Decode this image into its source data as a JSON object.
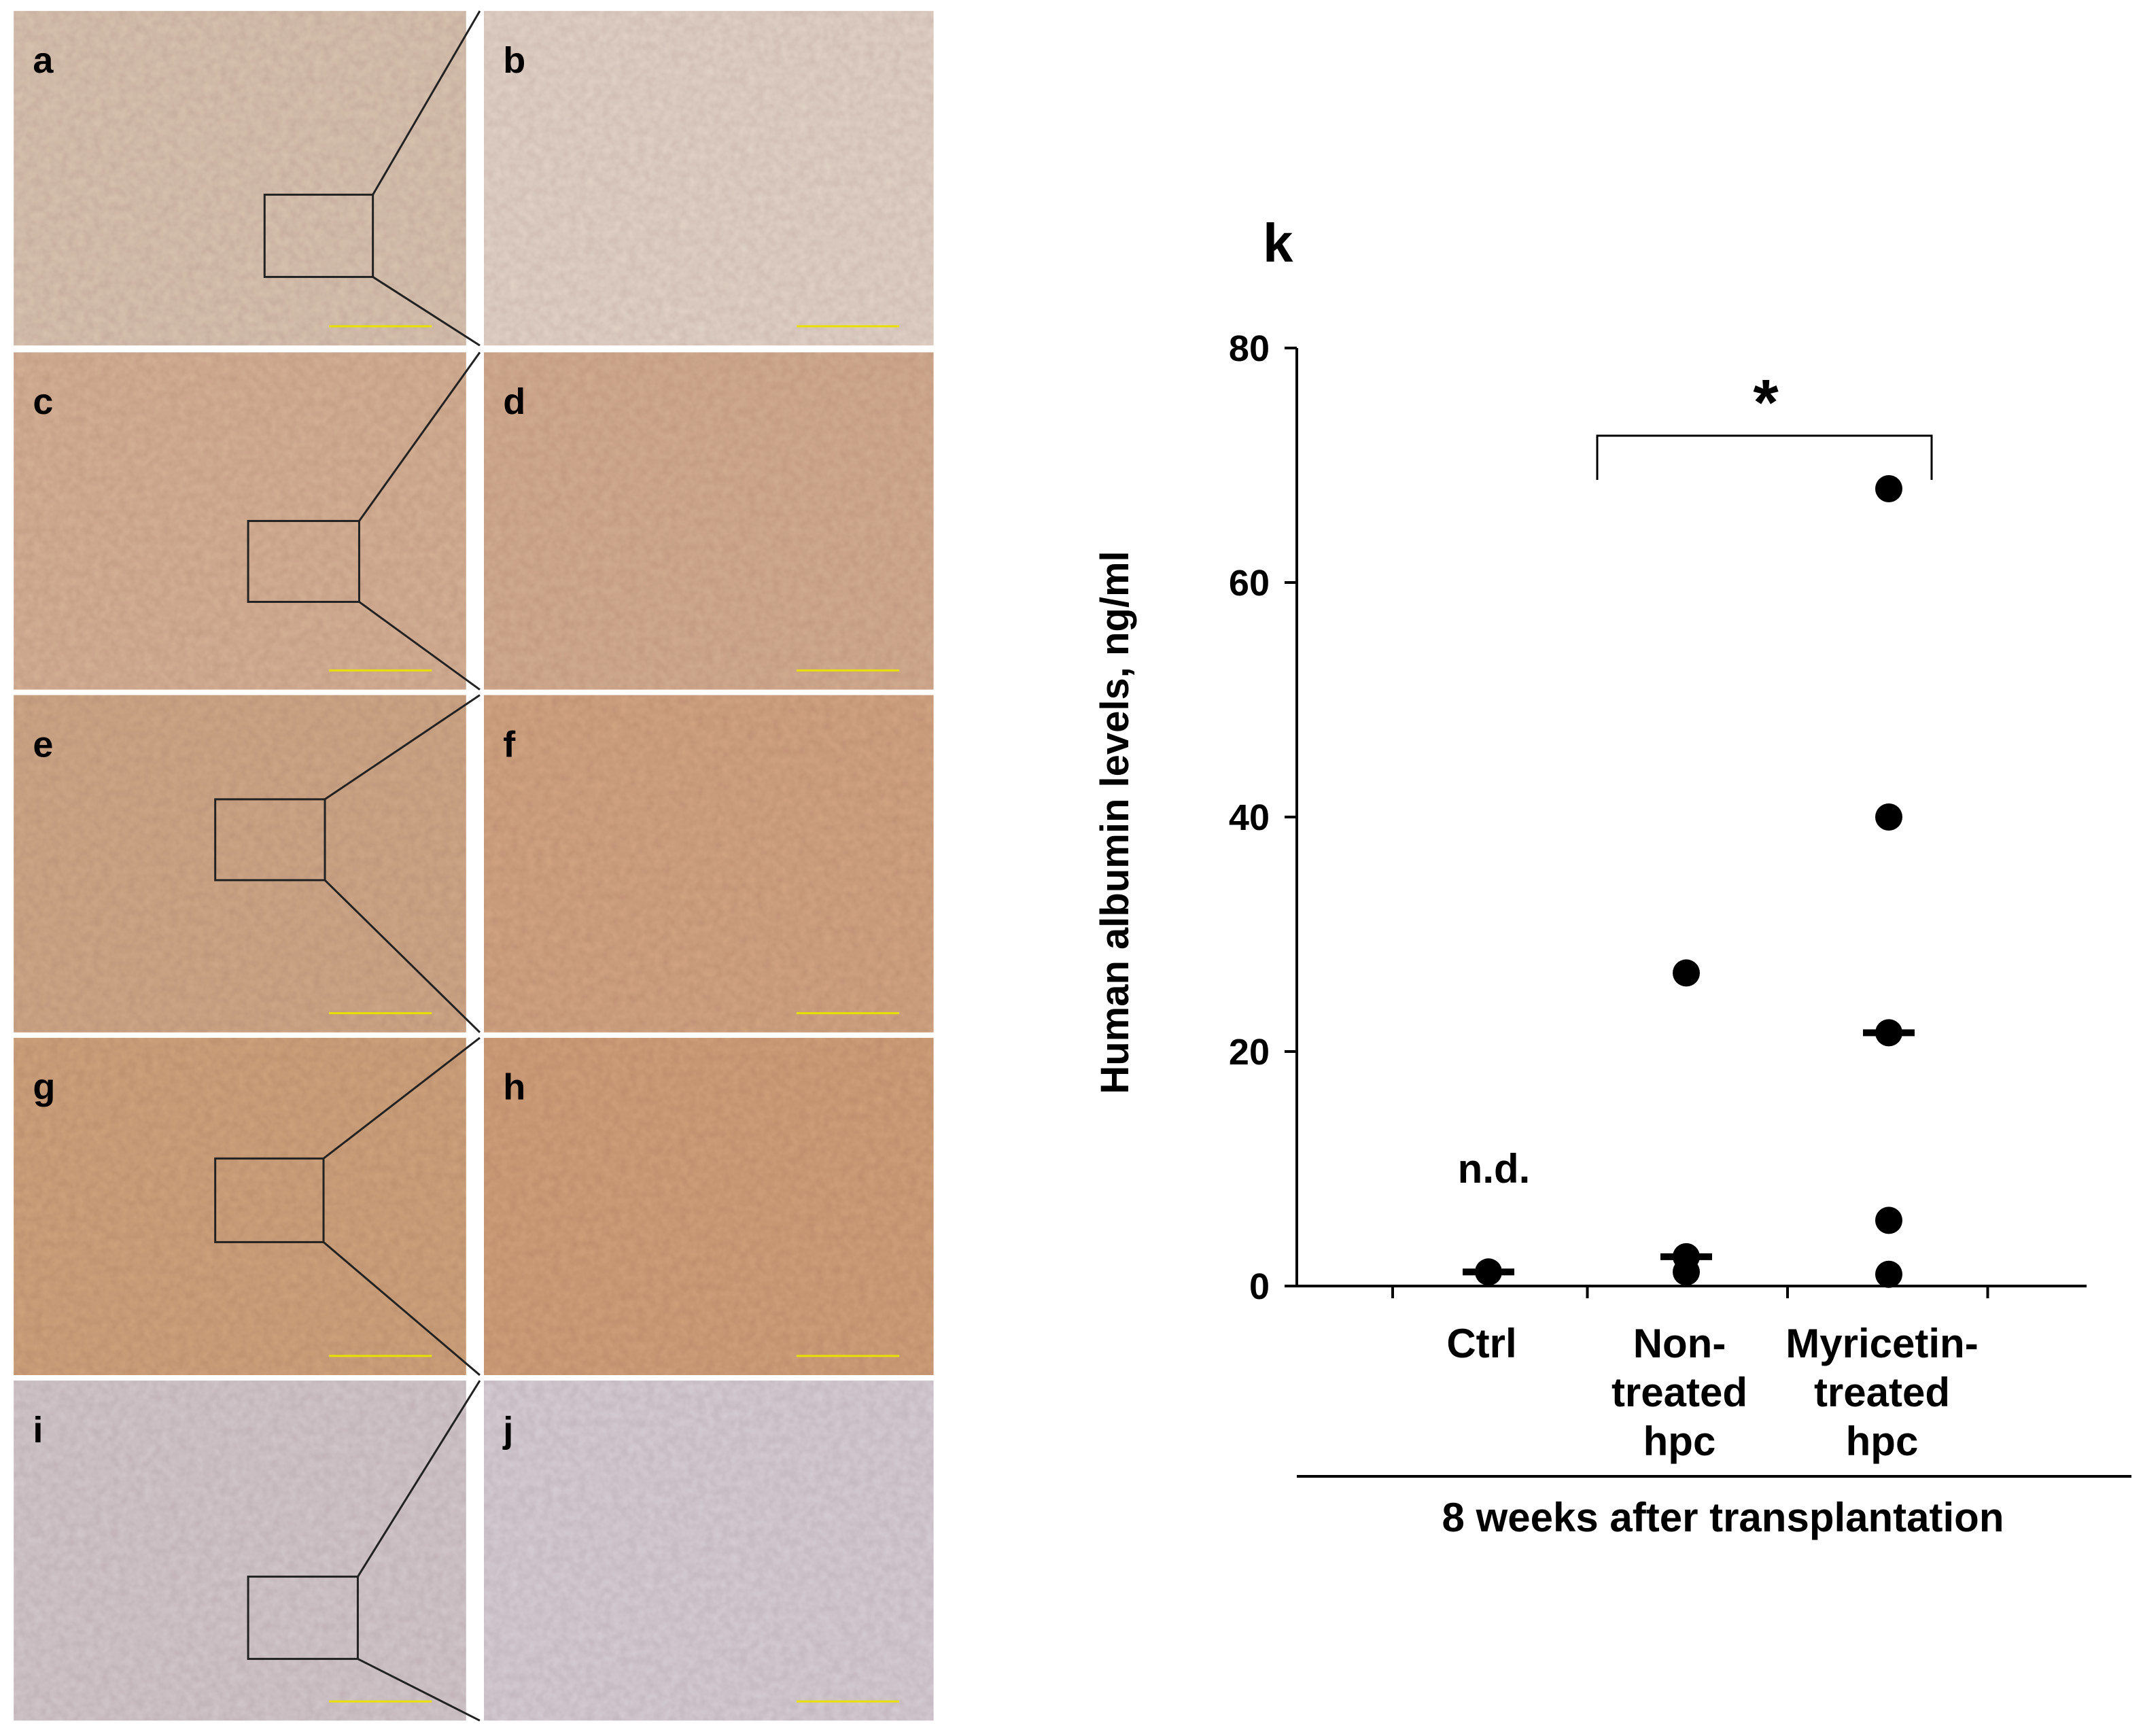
{
  "panel_labels": [
    "a",
    "b",
    "c",
    "d",
    "e",
    "f",
    "g",
    "h",
    "i",
    "j"
  ],
  "chart_data": {
    "type": "dot",
    "panel_label": "k",
    "categories": [
      "Ctrl",
      "Non-\ntreated\nhpc",
      "Myricetin-\ntreated\nhpc"
    ],
    "points": [
      [
        1.2
      ],
      [
        26.7,
        2.5,
        1.2
      ],
      [
        68,
        40,
        21.6,
        5.6,
        1
      ]
    ],
    "medians": [
      1.2,
      2.5,
      21.6
    ],
    "color": "#000000",
    "ylabel": "Human albumin levels, ng/ml",
    "xlabel": "8 weeks after transplantation",
    "ylim": [
      0,
      80
    ],
    "yticks": [
      0,
      20,
      40,
      60,
      80
    ],
    "annotations": {
      "ctrl_note": "n.d.",
      "significance": "*"
    }
  }
}
